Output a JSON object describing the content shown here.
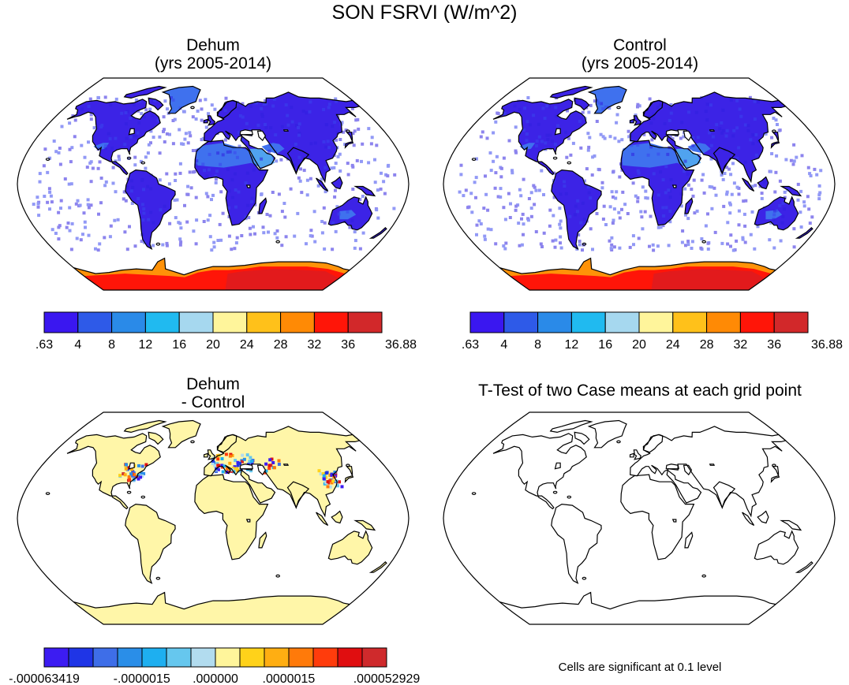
{
  "figure": {
    "title": "SON FSRVI (W/m^2)",
    "note": "Cells are significant at 0.1 level"
  },
  "colors": {
    "ocean": "#ffffff",
    "land_cold": "#3c23e6",
    "land_mid": "#3f71ee",
    "land_warm": "#50a3ef",
    "diff_zero": "#fff6a8",
    "outline": "#000000"
  },
  "chart_data": [
    {
      "type": "heatmap",
      "panel": "top-left",
      "title_line1": "Dehum",
      "title_line2": "(yrs 2005-2014)",
      "projection": "Robinson",
      "colorbar": {
        "levels": [
          ".63",
          "4",
          "8",
          "12",
          "16",
          "20",
          "24",
          "28",
          "32",
          "36",
          "36.88"
        ],
        "colors": [
          "#3a17f0",
          "#2e5ae8",
          "#2a8ae8",
          "#20baf0",
          "#a6d8ef",
          "#fff59b",
          "#ffc11a",
          "#ff8a05",
          "#ff1508",
          "#d2282a"
        ]
      },
      "range": [
        0.63,
        36.88
      ],
      "regions": [
        {
          "name": "Antarctica",
          "value": 34
        },
        {
          "name": "Greenland",
          "value": 12
        },
        {
          "name": "Sahara-Arabia",
          "value": 9
        },
        {
          "name": "Other land",
          "value": 3
        }
      ]
    },
    {
      "type": "heatmap",
      "panel": "top-right",
      "title_line1": "Control",
      "title_line2": "(yrs 2005-2014)",
      "projection": "Robinson",
      "colorbar": {
        "levels": [
          ".63",
          "4",
          "8",
          "12",
          "16",
          "20",
          "24",
          "28",
          "32",
          "36",
          "36.88"
        ],
        "colors": [
          "#3a17f0",
          "#2e5ae8",
          "#2a8ae8",
          "#20baf0",
          "#a6d8ef",
          "#fff59b",
          "#ffc11a",
          "#ff8a05",
          "#ff1508",
          "#d2282a"
        ]
      },
      "range": [
        0.63,
        36.88
      ],
      "regions": [
        {
          "name": "Antarctica",
          "value": 34
        },
        {
          "name": "Greenland",
          "value": 12
        },
        {
          "name": "Sahara-Arabia",
          "value": 9
        },
        {
          "name": "Other land",
          "value": 3
        }
      ]
    },
    {
      "type": "heatmap",
      "panel": "bottom-left",
      "title_line1": "Dehum",
      "title_line2": "- Control",
      "projection": "Robinson",
      "colorbar": {
        "levels": [
          "-.000063419",
          "-.0000015",
          ".000000",
          ".0000015",
          ".000052929"
        ],
        "colors": [
          "#3c1cf2",
          "#1f35e6",
          "#3e6ee8",
          "#2a8ee8",
          "#1eaff0",
          "#66c7ee",
          "#b2dcef",
          "#fff59b",
          "#ffd21a",
          "#ffae12",
          "#ff7a0a",
          "#ff3c0c",
          "#e00e10",
          "#cf2a2c"
        ]
      },
      "range": [
        -6.3419e-05,
        5.2929e-05
      ],
      "background_value": 0.0,
      "anomaly_clusters": [
        "Eastern United States",
        "Europe",
        "East Asia"
      ]
    },
    {
      "type": "heatmap",
      "panel": "bottom-right",
      "title_line1": "T-Test of two Case means at each grid point",
      "projection": "Robinson",
      "significant_cells": 0
    }
  ]
}
